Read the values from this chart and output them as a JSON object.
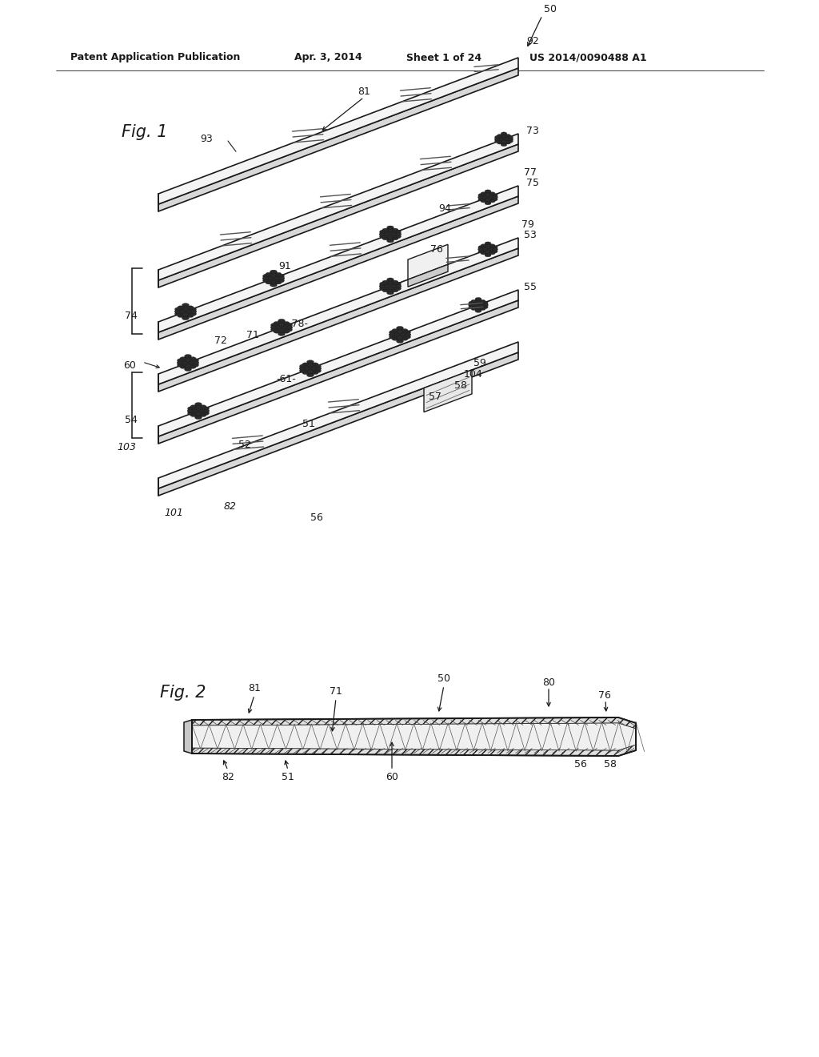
{
  "background_color": "#ffffff",
  "header_text": "Patent Application Publication",
  "header_date": "Apr. 3, 2014",
  "header_sheet": "Sheet 1 of 24",
  "header_patent": "US 2014/0090488 A1",
  "fig1_label": "Fig. 1",
  "fig2_label": "Fig. 2",
  "line_color": "#1a1a1a",
  "text_color": "#1a1a1a"
}
